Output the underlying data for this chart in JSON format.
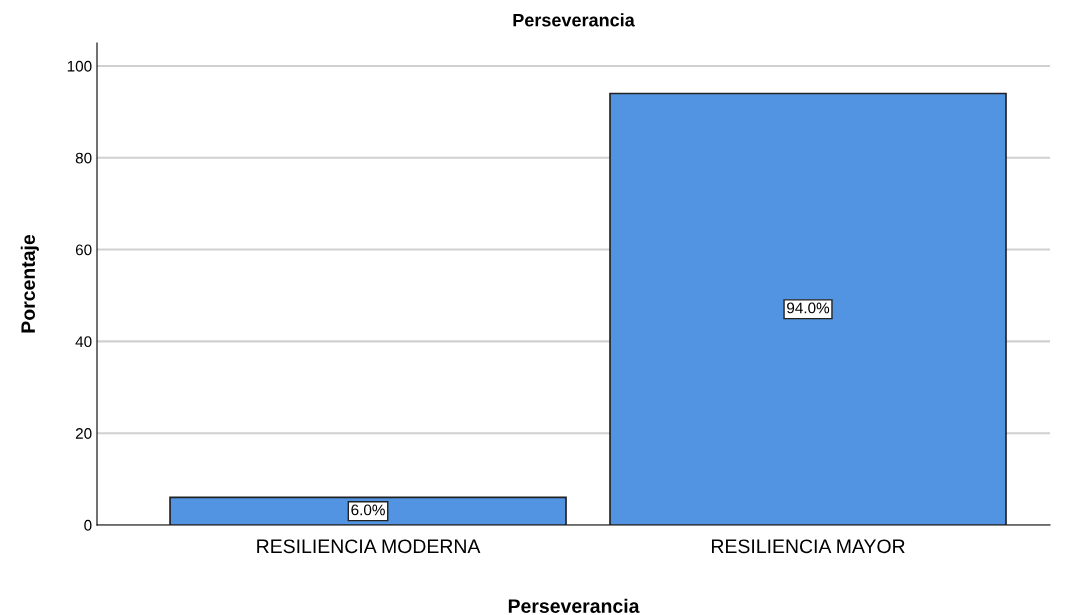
{
  "chart_data": {
    "type": "bar",
    "title": "Perseverancia",
    "xlabel": "Perseverancia",
    "ylabel": "Porcentaje",
    "categories": [
      "RESILIENCIA MODERNA",
      "RESILIENCIA MAYOR"
    ],
    "values": [
      6.0,
      94.0
    ],
    "value_labels": [
      "6.0%",
      "94.0%"
    ],
    "color": "#5294e2",
    "ylim": [
      0,
      105
    ],
    "yticks": [
      0,
      20,
      40,
      60,
      80,
      100
    ],
    "grid": "y"
  }
}
